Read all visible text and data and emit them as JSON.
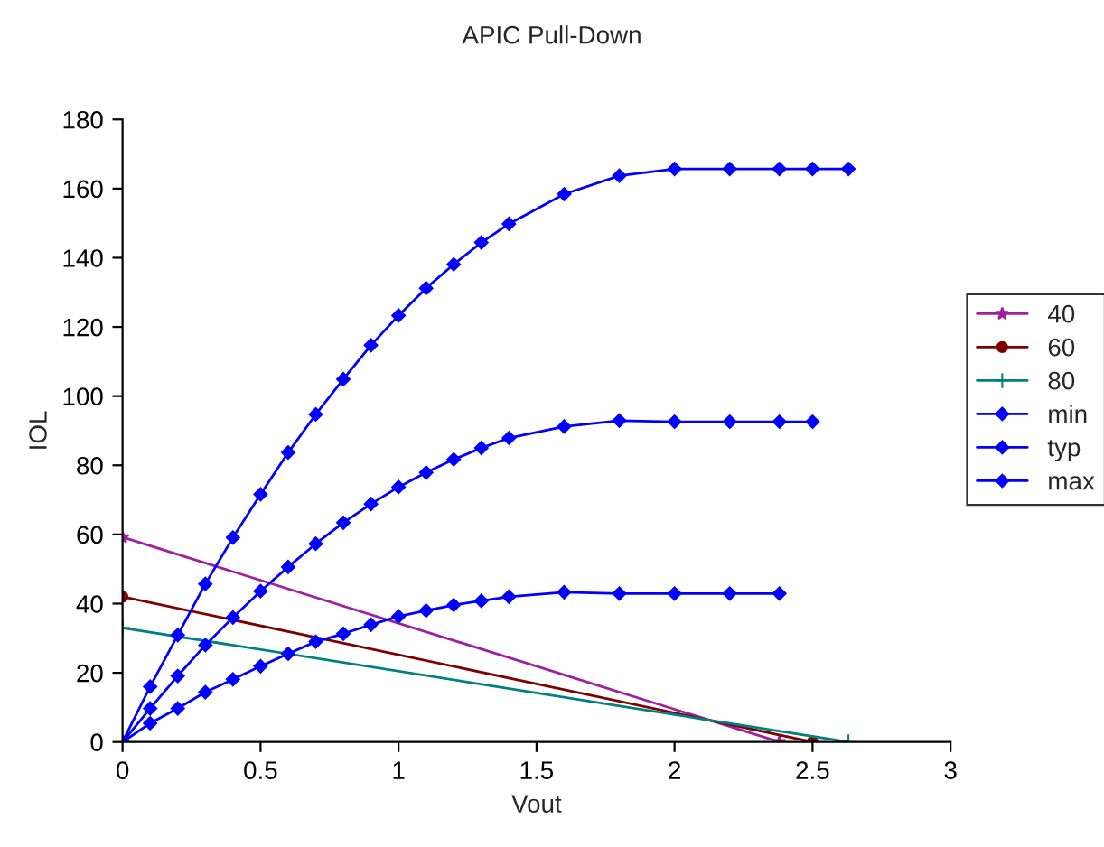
{
  "chart_data": {
    "type": "line",
    "title": "APIC Pull-Down",
    "xlabel": "Vout",
    "ylabel": "IOL",
    "xlim": [
      0,
      3
    ],
    "xticks": [
      0,
      0.5,
      1,
      1.5,
      2,
      2.5,
      3
    ],
    "ylim": [
      0,
      180
    ],
    "yticks": [
      0,
      20,
      40,
      60,
      80,
      100,
      120,
      140,
      160,
      180
    ],
    "grid": false,
    "legend": "right",
    "line_style": "solid",
    "series": [
      {
        "name": "40",
        "color": "#a0209f",
        "marker": "star",
        "x": [
          0,
          2.38
        ],
        "values": [
          59.2,
          0
        ]
      },
      {
        "name": "60",
        "color": "#800000",
        "marker": "circle",
        "x": [
          0,
          2.5
        ],
        "values": [
          42,
          0
        ]
      },
      {
        "name": "80",
        "color": "#008080",
        "marker": "cross",
        "x": [
          0,
          2.63
        ],
        "values": [
          33,
          0
        ]
      },
      {
        "name": "min",
        "color": "#0000ff",
        "marker": "diamond",
        "x": [
          0,
          0.1,
          0.2,
          0.3,
          0.4,
          0.5,
          0.6,
          0.7,
          0.8,
          0.9,
          1.0,
          1.1,
          1.2,
          1.3,
          1.4,
          1.6,
          1.8,
          2.0,
          2.2,
          2.38
        ],
        "values": [
          0,
          5.4,
          9.7,
          14.4,
          18.1,
          21.9,
          25.5,
          29,
          31.3,
          33.9,
          36.3,
          38,
          39.6,
          40.8,
          42,
          43.3,
          42.9,
          42.9,
          42.9,
          42.9
        ]
      },
      {
        "name": "typ",
        "color": "#0000ff",
        "marker": "diamond",
        "x": [
          0,
          0.1,
          0.2,
          0.3,
          0.4,
          0.5,
          0.6,
          0.7,
          0.8,
          0.9,
          1.0,
          1.1,
          1.2,
          1.3,
          1.4,
          1.6,
          1.8,
          2.0,
          2.2,
          2.38,
          2.5
        ],
        "values": [
          0,
          9.7,
          19.1,
          28,
          36,
          43.6,
          50.6,
          57.3,
          63.4,
          68.8,
          73.7,
          77.9,
          81.7,
          85,
          87.9,
          91.2,
          92.9,
          92.6,
          92.6,
          92.6,
          92.6
        ]
      },
      {
        "name": "max",
        "color": "#0000ff",
        "marker": "diamond",
        "x": [
          0,
          0.1,
          0.2,
          0.3,
          0.4,
          0.5,
          0.6,
          0.7,
          0.8,
          0.9,
          1.0,
          1.1,
          1.2,
          1.3,
          1.4,
          1.6,
          1.8,
          2.0,
          2.2,
          2.38,
          2.5,
          2.63
        ],
        "values": [
          0,
          16,
          30.9,
          45.7,
          59.1,
          71.6,
          83.7,
          94.7,
          104.9,
          114.7,
          123.3,
          131.2,
          138.1,
          144.4,
          149.8,
          158.4,
          163.7,
          165.7,
          165.7,
          165.7,
          165.7,
          165.7
        ]
      }
    ]
  }
}
